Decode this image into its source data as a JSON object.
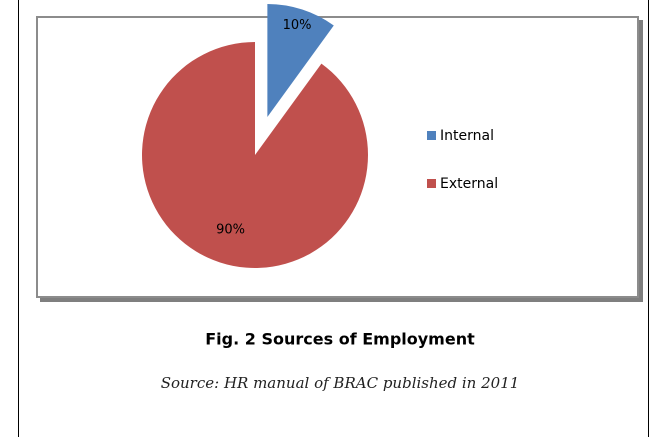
{
  "chart_data": {
    "type": "pie",
    "title": "Fig. 2 Sources of Employment",
    "subtitle": "Source: HR manual of BRAC published in 2011",
    "categories": [
      "Internal",
      "External"
    ],
    "values": [
      10,
      90
    ],
    "value_labels": [
      "10%",
      "90%"
    ],
    "colors": [
      "#4f81bd",
      "#c0504d"
    ],
    "exploded": [
      true,
      false
    ],
    "legend": "right"
  }
}
